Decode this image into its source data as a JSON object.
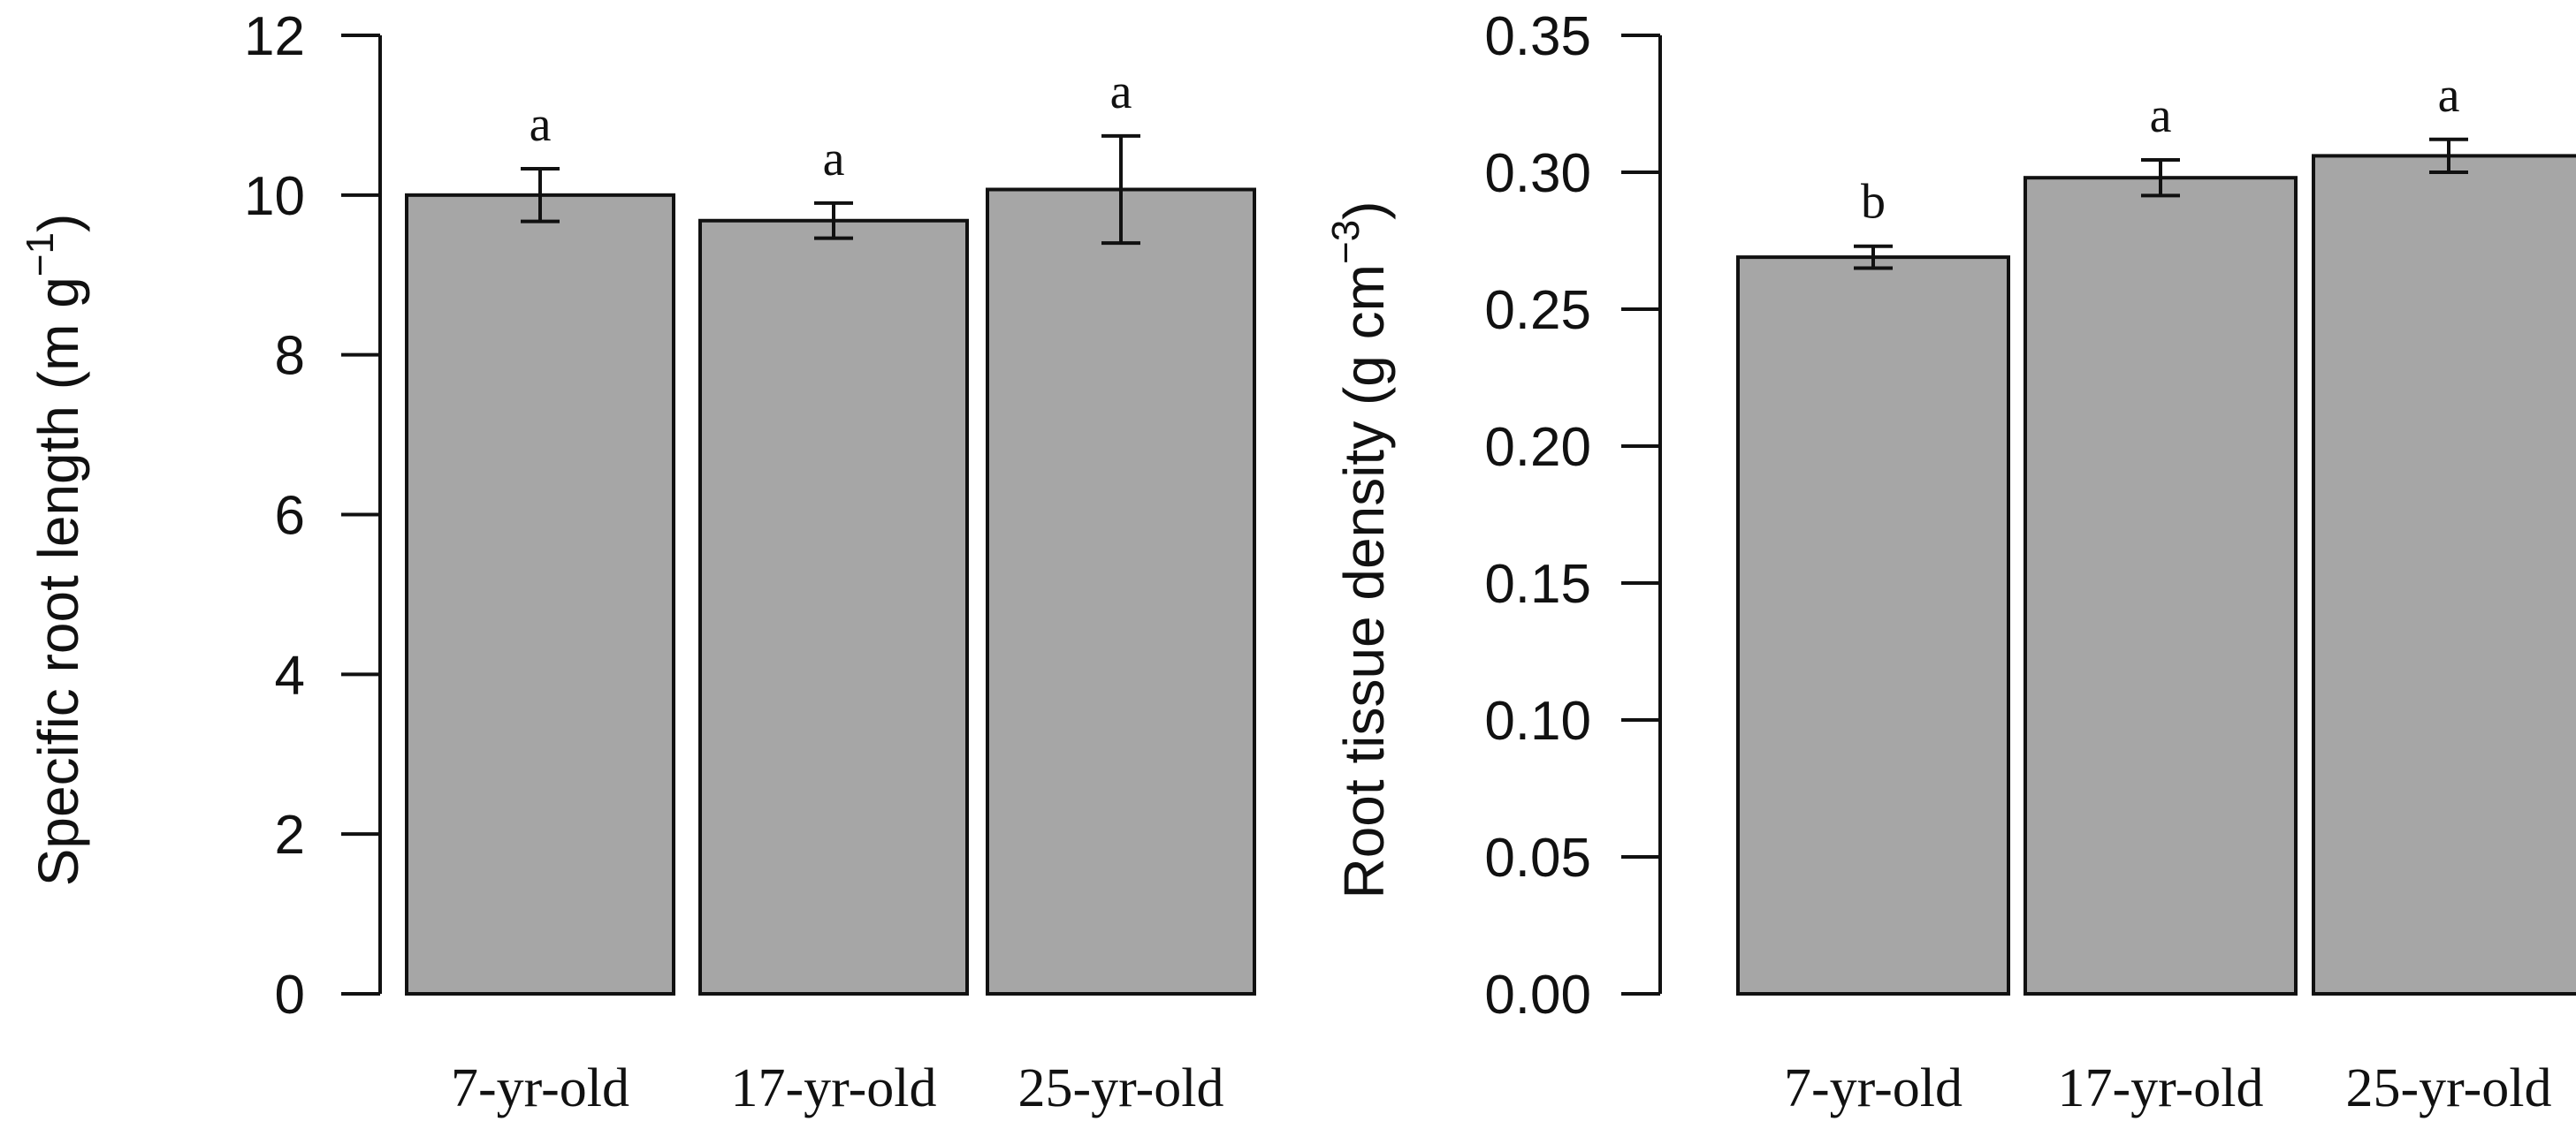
{
  "chart_data": [
    {
      "type": "bar",
      "title": "",
      "xlabel": "",
      "ylabel": "Specific root length (m g",
      "ylabel_unit_exponent": "−1",
      "ylabel_close": ")",
      "categories": [
        "7-yr-old",
        "17-yr-old",
        "25-yr-old"
      ],
      "values": [
        10.0,
        9.68,
        10.07
      ],
      "errors": [
        0.33,
        0.22,
        0.67
      ],
      "significance": [
        "a",
        "a",
        "a"
      ],
      "ylim": [
        0,
        12
      ],
      "yticks": [
        0,
        2,
        4,
        6,
        8,
        10,
        12
      ],
      "ytick_labels": [
        "0",
        "2",
        "4",
        "6",
        "8",
        "10",
        "12"
      ],
      "bar_color": "#a6a6a6"
    },
    {
      "type": "bar",
      "title": "",
      "xlabel": "",
      "ylabel": "Root tissue density (g cm",
      "ylabel_unit_exponent": "−3",
      "ylabel_close": ")",
      "categories": [
        "7-yr-old",
        "17-yr-old",
        "25-yr-old"
      ],
      "values": [
        0.269,
        0.298,
        0.306
      ],
      "errors": [
        0.004,
        0.0065,
        0.006
      ],
      "significance": [
        "b",
        "a",
        "a"
      ],
      "ylim": [
        0,
        0.35
      ],
      "yticks": [
        0,
        0.05,
        0.1,
        0.15,
        0.2,
        0.25,
        0.3,
        0.35
      ],
      "ytick_labels": [
        "0.00",
        "0.05",
        "0.10",
        "0.15",
        "0.20",
        "0.25",
        "0.30",
        "0.35"
      ],
      "bar_color": "#a6a6a6"
    }
  ]
}
